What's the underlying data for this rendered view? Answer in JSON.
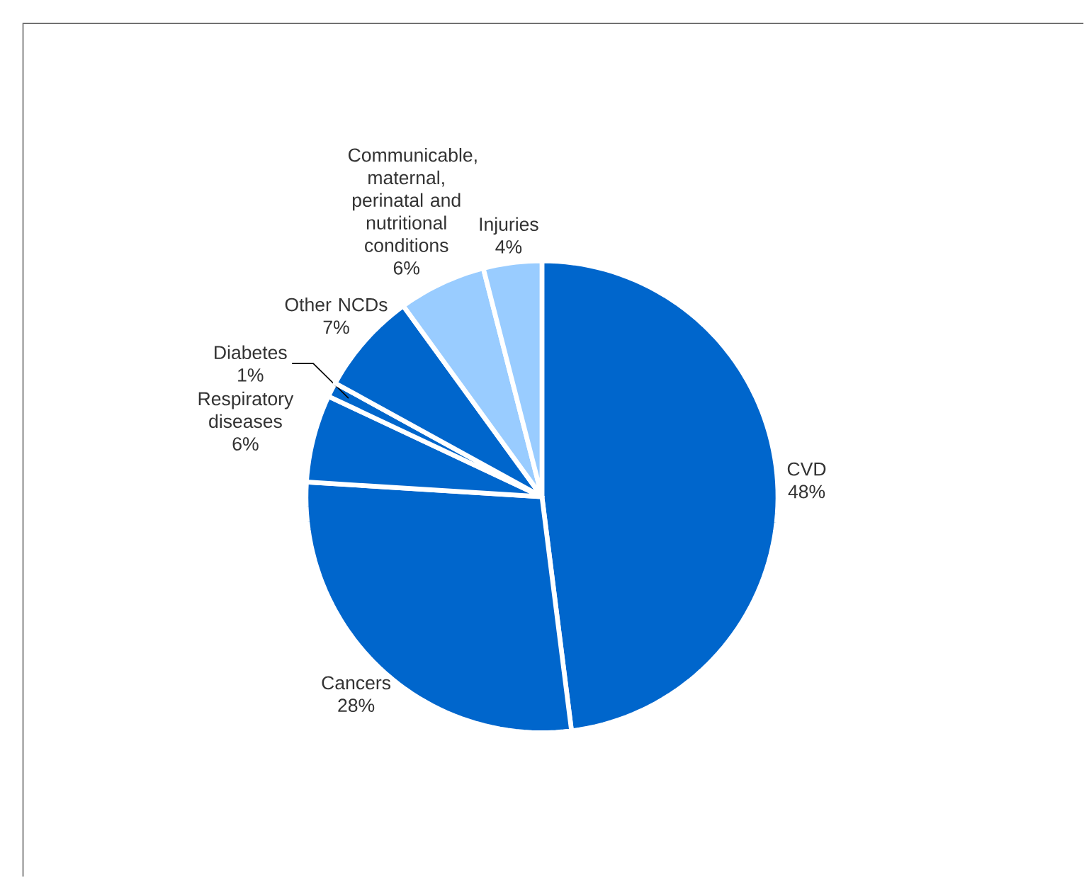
{
  "chart_data": {
    "type": "pie",
    "categories": [
      "CVD",
      "Cancers",
      "Respiratory diseases",
      "Diabetes",
      "Other NCDs",
      "Communicable, maternal, perinatal and nutritional conditions",
      "Injuries"
    ],
    "values": [
      48,
      28,
      6,
      1,
      7,
      6,
      4
    ],
    "colors": [
      "#0066cc",
      "#0066cc",
      "#0066cc",
      "#0066cc",
      "#0066cc",
      "#99ccff",
      "#99ccff"
    ],
    "value_labels": [
      "48%",
      "28%",
      "6%",
      "1%",
      "7%",
      "6%",
      "4%"
    ]
  }
}
